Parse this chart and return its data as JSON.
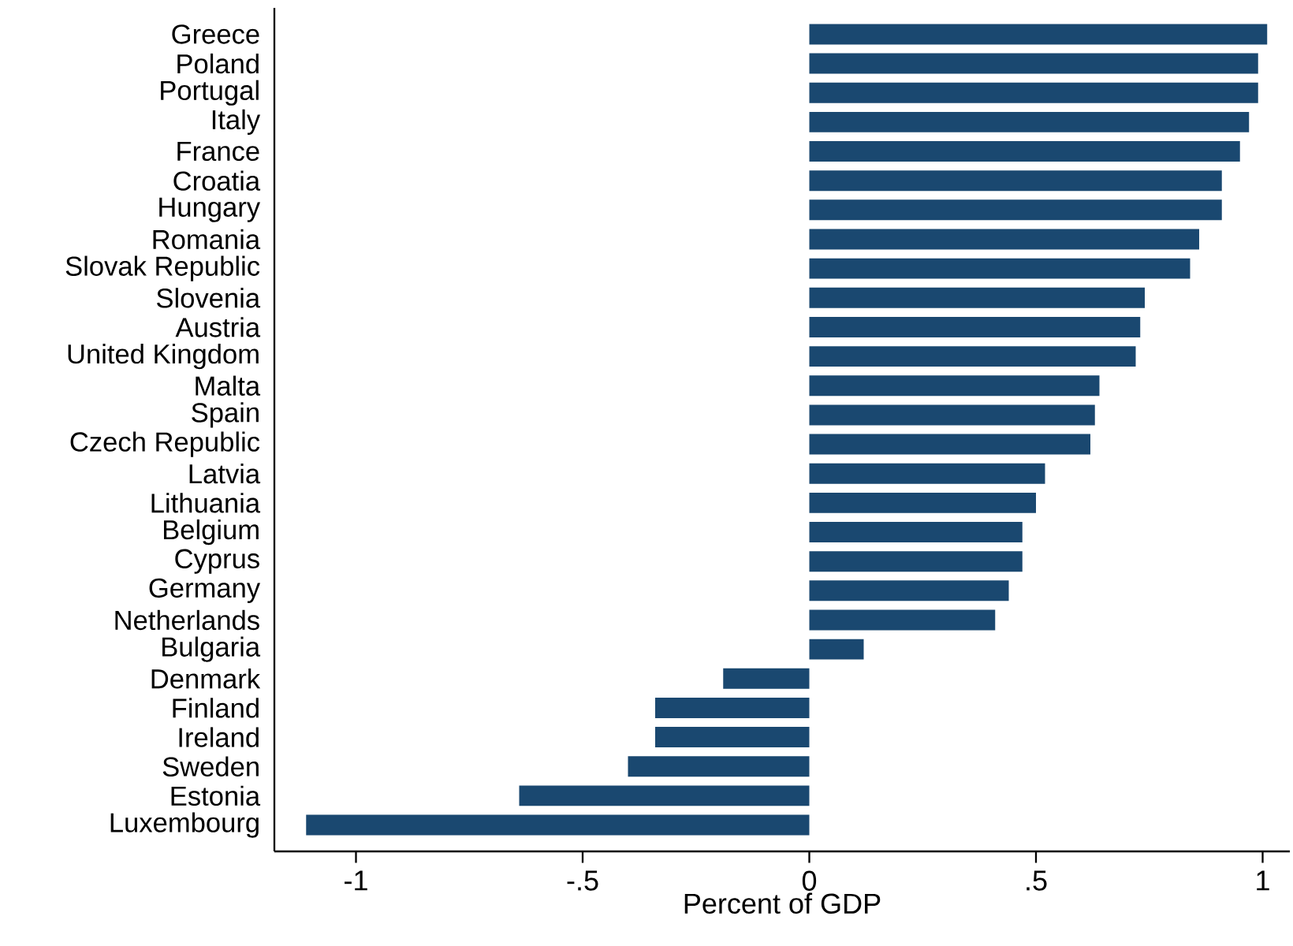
{
  "chart_data": {
    "type": "bar",
    "orientation": "horizontal",
    "xlabel": "Percent of GDP",
    "categories": [
      "Greece",
      "Poland",
      "Portugal",
      "Italy",
      "France",
      "Croatia",
      "Hungary",
      "Romania",
      "Slovak Republic",
      "Slovenia",
      "Austria",
      "United Kingdom",
      "Malta",
      "Spain",
      "Czech Republic",
      "Latvia",
      "Lithuania",
      "Belgium",
      "Cyprus",
      "Germany",
      "Netherlands",
      "Bulgaria",
      "Denmark",
      "Finland",
      "Ireland",
      "Sweden",
      "Estonia",
      "Luxembourg"
    ],
    "values": [
      1.01,
      0.99,
      0.99,
      0.97,
      0.95,
      0.91,
      0.91,
      0.86,
      0.84,
      0.74,
      0.73,
      0.72,
      0.64,
      0.63,
      0.62,
      0.52,
      0.5,
      0.47,
      0.47,
      0.44,
      0.41,
      0.12,
      -0.19,
      -0.34,
      -0.34,
      -0.4,
      -0.64,
      -1.11
    ],
    "color": "#1a4870",
    "xlim": [
      -1.18,
      1.06
    ],
    "xticks": [
      {
        "value": -1,
        "label": "-1"
      },
      {
        "value": -0.5,
        "label": "-.5"
      },
      {
        "value": 0,
        "label": "0"
      },
      {
        "value": 0.5,
        "label": ".5"
      },
      {
        "value": 1,
        "label": "1"
      }
    ],
    "grid": false
  }
}
